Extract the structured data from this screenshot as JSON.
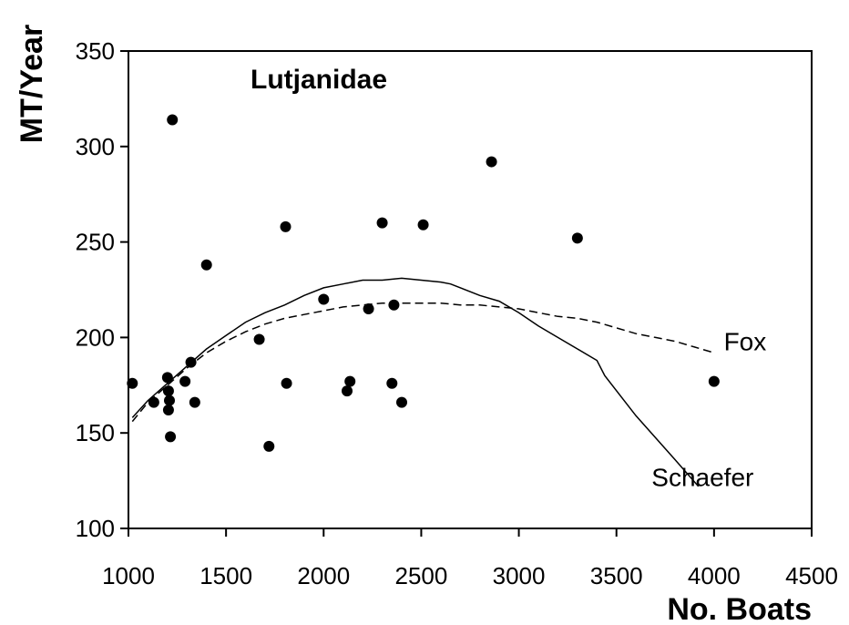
{
  "chart_data": {
    "type": "scatter",
    "title": "Lutjanidae",
    "xlabel": "No. Boats",
    "ylabel": "MT/Year",
    "xlim": [
      1000,
      4500
    ],
    "ylim": [
      100,
      350
    ],
    "x_ticks": [
      "1000",
      "1500",
      "2000",
      "2500",
      "3000",
      "3500",
      "4000",
      "4500"
    ],
    "y_ticks": [
      "100",
      "150",
      "200",
      "250",
      "300",
      "350"
    ],
    "grid": false,
    "legend": "none",
    "points": [
      {
        "x": 1020,
        "y": 176
      },
      {
        "x": 1130,
        "y": 166
      },
      {
        "x": 1200,
        "y": 179
      },
      {
        "x": 1205,
        "y": 172
      },
      {
        "x": 1205,
        "y": 162
      },
      {
        "x": 1210,
        "y": 167
      },
      {
        "x": 1215,
        "y": 148
      },
      {
        "x": 1225,
        "y": 314
      },
      {
        "x": 1290,
        "y": 177
      },
      {
        "x": 1320,
        "y": 187
      },
      {
        "x": 1340,
        "y": 166
      },
      {
        "x": 1400,
        "y": 238
      },
      {
        "x": 1670,
        "y": 199
      },
      {
        "x": 1720,
        "y": 143
      },
      {
        "x": 1805,
        "y": 258
      },
      {
        "x": 1810,
        "y": 176
      },
      {
        "x": 2000,
        "y": 220
      },
      {
        "x": 2120,
        "y": 172
      },
      {
        "x": 2135,
        "y": 177
      },
      {
        "x": 2230,
        "y": 215
      },
      {
        "x": 2300,
        "y": 260
      },
      {
        "x": 2350,
        "y": 176
      },
      {
        "x": 2360,
        "y": 217
      },
      {
        "x": 2400,
        "y": 166
      },
      {
        "x": 2510,
        "y": 259
      },
      {
        "x": 2860,
        "y": 292
      },
      {
        "x": 3300,
        "y": 252
      },
      {
        "x": 4000,
        "y": 177
      }
    ],
    "series": [
      {
        "name": "Schaefer",
        "style": "solid",
        "x": [
          1020,
          1100,
          1200,
          1300,
          1400,
          1500,
          1600,
          1700,
          1800,
          1900,
          2000,
          2100,
          2200,
          2300,
          2400,
          2500,
          2600,
          2650,
          2800,
          2900,
          3000,
          3100,
          3200,
          3300,
          3400,
          3440,
          3600,
          3800,
          3920
        ],
        "y": [
          158,
          167,
          176,
          185,
          194,
          201,
          208,
          213,
          217,
          222,
          226,
          228,
          230,
          230,
          231,
          230,
          229,
          228,
          222,
          219,
          213,
          206,
          200,
          194,
          188,
          180,
          159,
          136,
          122
        ]
      },
      {
        "name": "Fox",
        "style": "dashed",
        "x": [
          1020,
          1100,
          1200,
          1300,
          1400,
          1500,
          1600,
          1700,
          1800,
          1900,
          2000,
          2100,
          2200,
          2300,
          2400,
          2500,
          2600,
          2700,
          2800,
          2900,
          3000,
          3100,
          3200,
          3300,
          3400,
          3500,
          3600,
          3700,
          3800,
          3900,
          4000
        ],
        "y": [
          156,
          166,
          175,
          184,
          192,
          198,
          203,
          207,
          210,
          212,
          214,
          216,
          217,
          218,
          218,
          218,
          218,
          217,
          217,
          216,
          215,
          213,
          211,
          210,
          208,
          205,
          202,
          200,
          198,
          195,
          192
        ]
      }
    ],
    "curve_labels": [
      {
        "text": "Fox",
        "anchor_x": 4050,
        "anchor_y": 198
      },
      {
        "text": "Schaefer",
        "anchor_x": 3680,
        "anchor_y": 127
      }
    ]
  }
}
